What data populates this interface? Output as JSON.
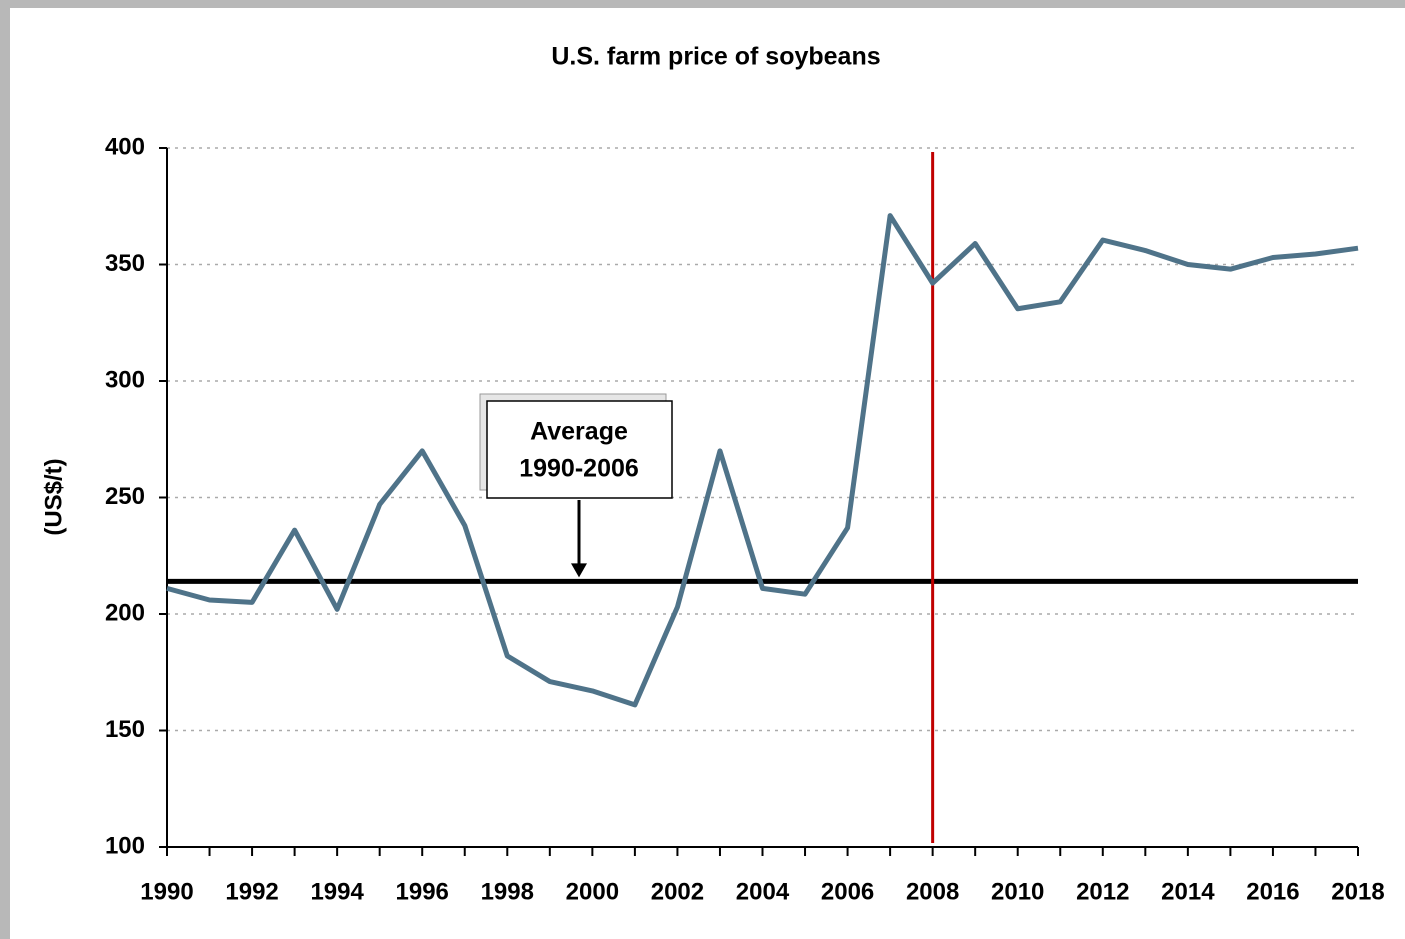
{
  "chart_data": {
    "type": "line",
    "title": "U.S. farm price of soybeans",
    "y_label": "(US$/t)",
    "x": [
      1990,
      1991,
      1992,
      1993,
      1994,
      1995,
      1996,
      1997,
      1998,
      1999,
      2000,
      2001,
      2002,
      2003,
      2004,
      2005,
      2006,
      2007,
      2008,
      2009,
      2010,
      2011,
      2012,
      2013,
      2014,
      2015,
      2016,
      2017,
      2018
    ],
    "series": [
      {
        "name": "U.S. farm price of soybeans",
        "color": "#4f7389",
        "values": [
          211,
          206,
          205,
          236,
          202,
          247,
          270,
          238,
          182,
          171,
          167,
          161,
          203,
          270,
          211,
          208.5,
          237,
          371,
          342,
          359,
          331,
          334,
          360.5,
          356,
          350,
          348,
          353,
          354.5,
          357
        ]
      }
    ],
    "xlim": [
      1990,
      2018
    ],
    "xticks": [
      1990,
      1992,
      1994,
      1996,
      1998,
      2000,
      2002,
      2004,
      2006,
      2008,
      2010,
      2012,
      2014,
      2016,
      2018
    ],
    "ylim": [
      100,
      400
    ],
    "yticks": [
      100,
      150,
      200,
      250,
      300,
      350,
      400
    ],
    "grid": true,
    "average": {
      "value": 214,
      "label": [
        "Average",
        "1990-2006"
      ],
      "color": "#000000"
    },
    "vline": {
      "x": 2008,
      "color": "#c00000"
    }
  }
}
